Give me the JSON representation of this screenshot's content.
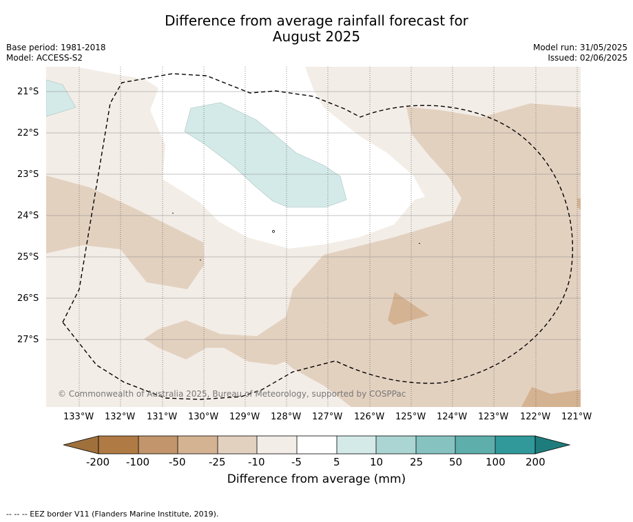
{
  "title": {
    "line1": "Difference from average rainfall forecast for",
    "line2": "August 2025"
  },
  "meta": {
    "base_period": "Base period: 1981-2018",
    "model": "Model: ACCESS-S2",
    "model_run": "Model run: 31/05/2025",
    "issued": "Issued: 02/06/2025"
  },
  "map": {
    "lat_labels": [
      "21°S",
      "22°S",
      "23°S",
      "24°S",
      "25°S",
      "26°S",
      "27°S"
    ],
    "lon_labels": [
      "133°W",
      "132°W",
      "131°W",
      "130°W",
      "129°W",
      "128°W",
      "127°W",
      "126°W",
      "125°W",
      "124°W",
      "123°W",
      "122°W",
      "121°W"
    ],
    "copyright": "© Commonwealth of Australia 2025, Bureau of Meteorology, supported by COSPPac",
    "colors": {
      "m200": "#a0703c",
      "m100": "#b07a44",
      "m50": "#c2956c",
      "m25": "#d4b393",
      "m10": "#e3d1c0",
      "m5": "#f3ede7",
      "zero": "#ffffff",
      "p10": "#d4eae8",
      "p25": "#abd5d3",
      "p50": "#86c3c0",
      "p100": "#5eaeab",
      "p200": "#31999a",
      "over": "#1e7d7c"
    }
  },
  "colorbar": {
    "labels": [
      "-200",
      "-100",
      "-50",
      "-25",
      "-10",
      "-5",
      "5",
      "10",
      "25",
      "50",
      "100",
      "200"
    ],
    "title": "Difference from average (mm)"
  },
  "footer": "--  --  -- EEZ border V11 (Flanders Marine Institute, 2019)."
}
